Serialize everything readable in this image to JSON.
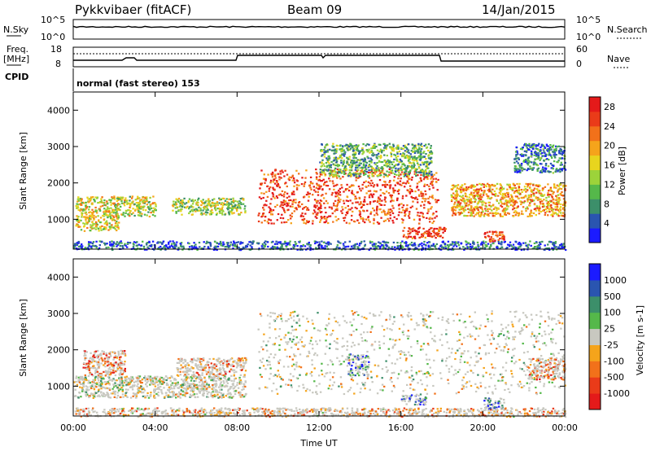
{
  "header": {
    "title": "Pykkvibaer (fitACF)",
    "beam": "Beam 09",
    "date": "14/Jan/2015"
  },
  "nsky_panel": {
    "label": "N.Sky",
    "left_ticks": [
      "10^5",
      "10^0"
    ],
    "right_ticks": [
      "10^5",
      "10^0"
    ],
    "right_label": "N.Search"
  },
  "freq_panel": {
    "label_line1": "Freq.",
    "label_line2": "[MHz]",
    "left_ticks": [
      "18",
      "8"
    ],
    "right_ticks": [
      "60",
      "0"
    ],
    "right_label": "Nave"
  },
  "cpid": {
    "label": "CPID",
    "value": "normal (fast stereo) 153"
  },
  "chart_data": [
    {
      "type": "heatmap",
      "panel": "power",
      "ylabel": "Slant Range [km]",
      "xlabel": "",
      "x_ticks": [
        "00:00",
        "04:00",
        "08:00",
        "12:00",
        "16:00",
        "20:00",
        "00:00"
      ],
      "xlim_hours": [
        0,
        24
      ],
      "y_ticks": [
        "1000",
        "2000",
        "3000",
        "4000"
      ],
      "ylim": [
        180,
        4500
      ],
      "colorbar": {
        "label": "Power [dB]",
        "ticks": [
          "4",
          "8",
          "12",
          "16",
          "20",
          "24",
          "28"
        ],
        "range": [
          0,
          30
        ],
        "colors": [
          "#1b1bff",
          "#2a55b0",
          "#3c8f6a",
          "#55b84a",
          "#9cd33a",
          "#e8d51e",
          "#f5a41b",
          "#f2711a",
          "#ea3b19",
          "#e41a1a"
        ]
      },
      "scatter_bands": [
        {
          "t": [
            0.0,
            24.0
          ],
          "r": [
            180,
            420
          ],
          "level": 0.15
        },
        {
          "t": [
            0.1,
            2.2
          ],
          "r": [
            700,
            1650
          ],
          "level": 0.55
        },
        {
          "t": [
            2.0,
            4.0
          ],
          "r": [
            1100,
            1650
          ],
          "level": 0.5
        },
        {
          "t": [
            4.8,
            8.4
          ],
          "r": [
            1150,
            1600
          ],
          "level": 0.45
        },
        {
          "t": [
            9.0,
            17.8
          ],
          "r": [
            900,
            2400
          ],
          "level": 0.85
        },
        {
          "t": [
            12.0,
            17.5
          ],
          "r": [
            2200,
            3100
          ],
          "level": 0.35
        },
        {
          "t": [
            16.0,
            18.2
          ],
          "r": [
            500,
            800
          ],
          "level": 0.9
        },
        {
          "t": [
            18.4,
            24.0
          ],
          "r": [
            1100,
            2000
          ],
          "level": 0.65
        },
        {
          "t": [
            20.0,
            21.0
          ],
          "r": [
            400,
            700
          ],
          "level": 0.85
        },
        {
          "t": [
            21.5,
            24.0
          ],
          "r": [
            2300,
            3100
          ],
          "level": 0.2
        }
      ]
    },
    {
      "type": "heatmap",
      "panel": "velocity",
      "ylabel": "Slant Range [km]",
      "xlabel": "Time UT",
      "x_ticks": [
        "00:00",
        "04:00",
        "08:00",
        "12:00",
        "16:00",
        "20:00",
        "00:00"
      ],
      "xlim_hours": [
        0,
        24
      ],
      "y_ticks": [
        "1000",
        "2000",
        "3000",
        "4000"
      ],
      "ylim": [
        180,
        4500
      ],
      "colorbar": {
        "label": "Velocity [m s-1]",
        "ticks": [
          "1000",
          "500",
          "100",
          "25",
          "-25",
          "-100",
          "-500",
          "-1000"
        ],
        "range": [
          -1000,
          1000
        ],
        "colors": [
          "#e41a1a",
          "#ea3b19",
          "#f2711a",
          "#f5a41b",
          "#c8c8c0",
          "#55b84a",
          "#3c8f6a",
          "#2a55b0",
          "#1b1bff"
        ]
      },
      "scatter_bands": [
        {
          "t": [
            0.0,
            24.0
          ],
          "r": [
            180,
            420
          ],
          "level": 0.35
        },
        {
          "t": [
            0.4,
            2.5
          ],
          "r": [
            1300,
            2000
          ],
          "level": 0.25
        },
        {
          "t": [
            0.0,
            8.4
          ],
          "r": [
            700,
            1300
          ],
          "level": 0.5
        },
        {
          "t": [
            5.0,
            8.4
          ],
          "r": [
            1300,
            1800
          ],
          "level": 0.3
        },
        {
          "t": [
            9.0,
            24.0
          ],
          "r": [
            800,
            3100
          ],
          "level": 0.5
        },
        {
          "t": [
            13.4,
            14.4
          ],
          "r": [
            1300,
            1900
          ],
          "level": 0.85
        },
        {
          "t": [
            16.0,
            17.2
          ],
          "r": [
            500,
            800
          ],
          "level": 0.8
        },
        {
          "t": [
            20.0,
            21.0
          ],
          "r": [
            400,
            700
          ],
          "level": 0.85
        },
        {
          "t": [
            22.2,
            24.0
          ],
          "r": [
            1200,
            1800
          ],
          "level": 0.2
        }
      ]
    }
  ]
}
